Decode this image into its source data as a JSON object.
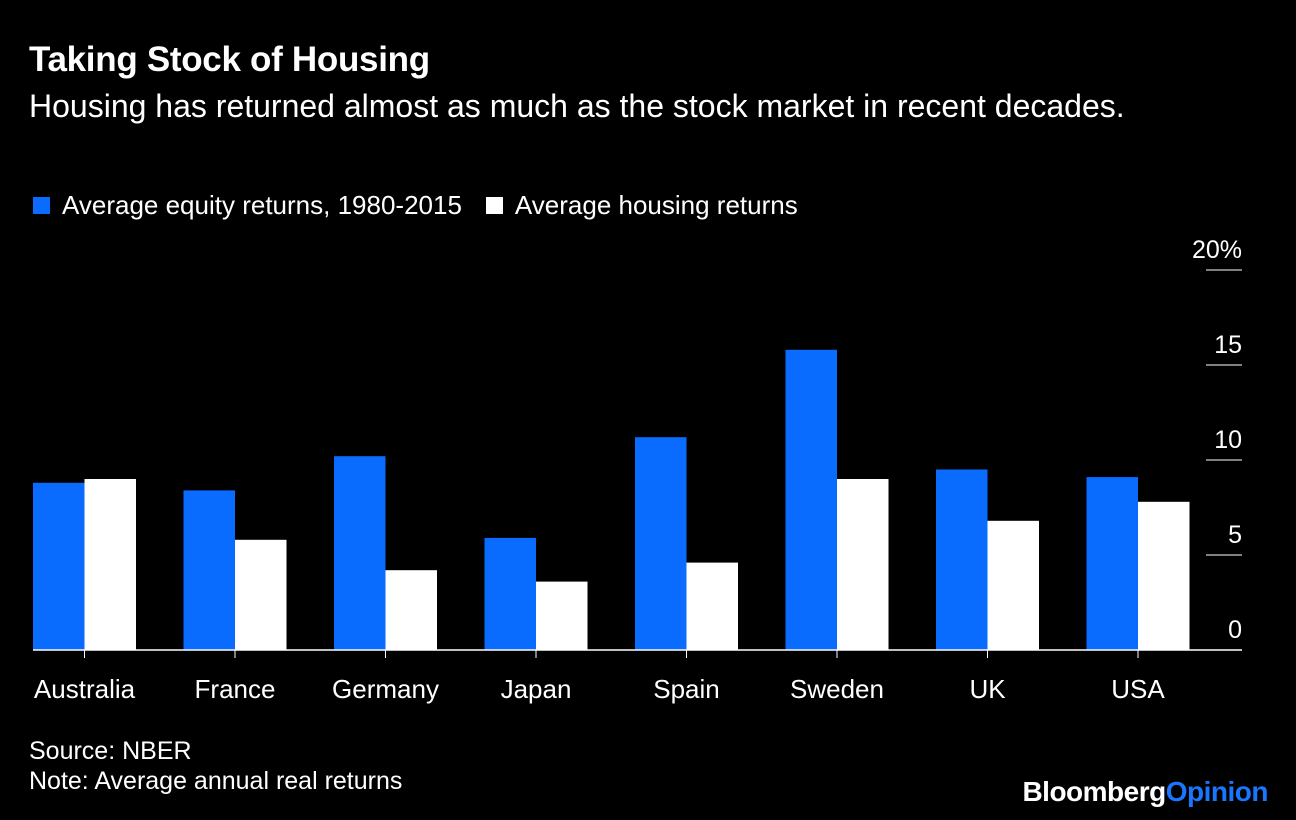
{
  "header": {
    "title": "Taking Stock of Housing",
    "subtitle": "Housing has returned almost as much as the stock market in recent decades."
  },
  "legend": {
    "items": [
      {
        "label": "Average equity returns, 1980-2015",
        "color": "#0a6cff"
      },
      {
        "label": "Average housing returns",
        "color": "#ffffff"
      }
    ]
  },
  "footer": {
    "source": "Source: NBER",
    "note": "Note: Average annual real returns"
  },
  "branding": {
    "bloomberg": "Bloomberg",
    "opinion": "Opinion",
    "opinion_color": "#1a75ff"
  },
  "chart_data": {
    "type": "bar",
    "categories": [
      "Australia",
      "France",
      "Germany",
      "Japan",
      "Spain",
      "Sweden",
      "UK",
      "USA"
    ],
    "series": [
      {
        "name": "Average equity returns, 1980-2015",
        "color": "#0a6cff",
        "values": [
          8.8,
          8.4,
          10.2,
          5.9,
          11.2,
          15.8,
          9.5,
          9.1
        ]
      },
      {
        "name": "Average housing returns",
        "color": "#ffffff",
        "values": [
          9.0,
          5.8,
          4.2,
          3.6,
          4.6,
          9.0,
          6.8,
          7.8
        ]
      }
    ],
    "ylim": [
      0,
      20
    ],
    "yticks": [
      0,
      5,
      10,
      15,
      20
    ],
    "ytick_labels": [
      "0",
      "5",
      "10",
      "15",
      "20%"
    ],
    "y_axis_side": "right",
    "legend_position": "top-left",
    "grid": false
  }
}
